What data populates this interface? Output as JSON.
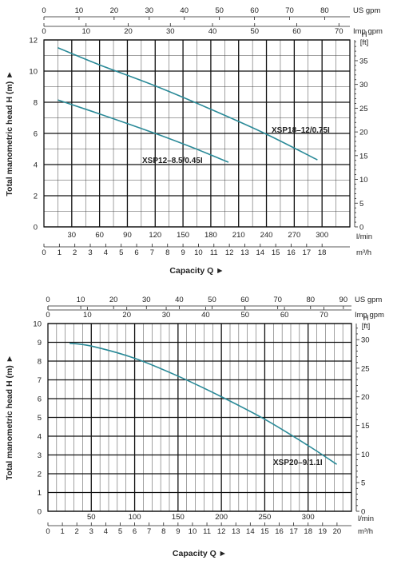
{
  "chart_data": [
    {
      "type": "line",
      "ylabel": "Total manometric head H (m)  ►",
      "xlabel": "Capacity Q  ►",
      "y_unit_left": "",
      "y_unit_right_line1": "H",
      "y_unit_right_line2": "[ft]",
      "ylim": [
        0,
        12
      ],
      "y_ticks": [
        0,
        2,
        4,
        6,
        8,
        10,
        12
      ],
      "y_ft_ticks": [
        0,
        5,
        10,
        15,
        20,
        25,
        30,
        35
      ],
      "x_lmin_range": [
        0,
        330
      ],
      "x_lmin_ticks": [
        30,
        60,
        90,
        120,
        150,
        180,
        210,
        240,
        270,
        300
      ],
      "x_lmin_unit": "l/min",
      "x_m3h_ticks": [
        0,
        1,
        2,
        3,
        4,
        5,
        6,
        7,
        8,
        9,
        10,
        11,
        12,
        13,
        14,
        15,
        16,
        17,
        18
      ],
      "x_m3h_unit": "m³/h",
      "x_usgpm_ticks": [
        0,
        10,
        20,
        30,
        40,
        50,
        60,
        70,
        80
      ],
      "x_usgpm_unit": "US gpm",
      "x_impgpm_ticks": [
        0,
        10,
        20,
        30,
        40,
        50,
        60,
        70
      ],
      "x_impgpm_unit": "Imp gpm",
      "grid": true,
      "series": [
        {
          "name": "XSP18–12/0.75I",
          "color": "#2a8a98",
          "x": [
            15,
            60,
            120,
            180,
            240,
            295
          ],
          "y": [
            11.5,
            10.4,
            9.05,
            7.55,
            5.95,
            4.3
          ]
        },
        {
          "name": "XSP12–8.5/0.45I",
          "color": "#2a8a98",
          "x": [
            15,
            60,
            120,
            160,
            199
          ],
          "y": [
            8.15,
            7.25,
            6.0,
            5.1,
            4.15
          ]
        }
      ]
    },
    {
      "type": "line",
      "ylabel": "Total manometric head H (m)  ►",
      "xlabel": "Capacity Q  ►",
      "y_unit_right_line1": "H",
      "y_unit_right_line2": "[ft]",
      "ylim": [
        0,
        10
      ],
      "y_ticks": [
        0,
        1,
        2,
        3,
        4,
        5,
        6,
        7,
        8,
        9,
        10
      ],
      "y_ft_ticks": [
        0,
        5,
        10,
        15,
        20,
        25,
        30
      ],
      "x_lmin_range": [
        0,
        350
      ],
      "x_lmin_ticks": [
        50,
        100,
        150,
        200,
        250,
        300
      ],
      "x_lmin_unit": "l/min",
      "x_m3h_ticks": [
        0,
        1,
        2,
        3,
        4,
        5,
        6,
        7,
        8,
        9,
        10,
        11,
        12,
        13,
        14,
        15,
        16,
        17,
        18,
        19,
        20
      ],
      "x_m3h_unit": "m³/h",
      "x_usgpm_ticks": [
        0,
        10,
        20,
        30,
        40,
        50,
        60,
        70,
        80,
        90
      ],
      "x_usgpm_unit": "US gpm",
      "x_impgpm_ticks": [
        0,
        10,
        20,
        30,
        40,
        50,
        60,
        70
      ],
      "x_impgpm_unit": "Imp gpm",
      "grid": true,
      "series": [
        {
          "name": "XSP20–9/1.1I",
          "color": "#2a8a98",
          "x": [
            25,
            50,
            100,
            150,
            200,
            250,
            300,
            333
          ],
          "y": [
            8.95,
            8.8,
            8.15,
            7.2,
            6.1,
            4.9,
            3.5,
            2.5
          ]
        }
      ]
    }
  ]
}
